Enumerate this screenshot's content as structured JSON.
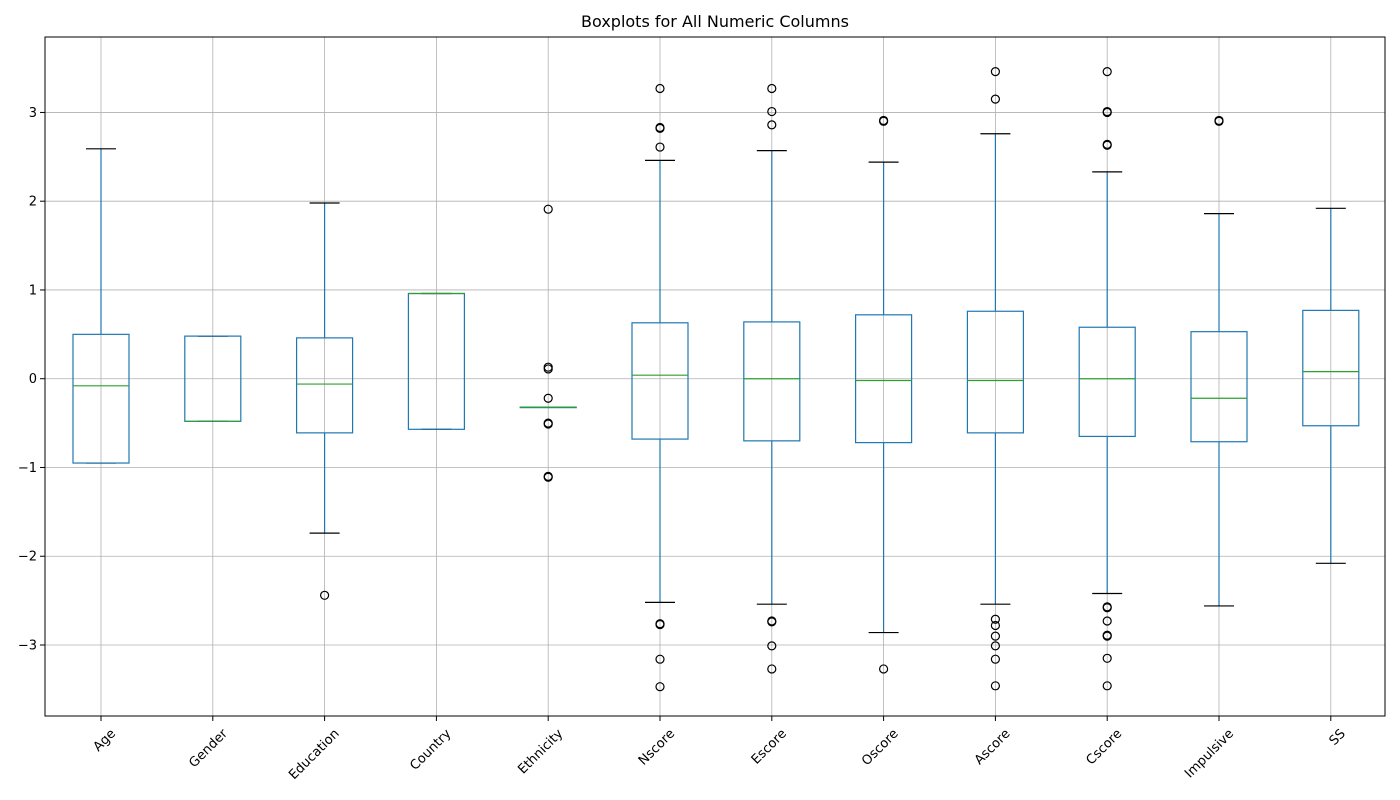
{
  "chart_data": {
    "type": "boxplot",
    "title": "Boxplots for All Numeric Columns",
    "xlabel": "",
    "ylabel": "",
    "ylim": [
      -3.8,
      3.85
    ],
    "yticks": [
      -3,
      -2,
      -1,
      0,
      1,
      2,
      3
    ],
    "grid": true,
    "colors": {
      "box": "#1f77b4",
      "median": "#2ca02c",
      "whisker_cap": "#000000",
      "grid": "#b0b0b0",
      "flier": "#000000"
    },
    "categories": [
      "Age",
      "Gender",
      "Education",
      "Country",
      "Ethnicity",
      "Nscore",
      "Escore",
      "Oscore",
      "Ascore",
      "Cscore",
      "Impulsive",
      "SS"
    ],
    "boxes": [
      {
        "name": "Age",
        "whislo": -0.95,
        "q1": -0.95,
        "med": -0.08,
        "q3": 0.5,
        "whishi": 2.59,
        "fliers": []
      },
      {
        "name": "Gender",
        "whislo": -0.48,
        "q1": -0.48,
        "med": -0.48,
        "q3": 0.48,
        "whishi": 0.48,
        "fliers": []
      },
      {
        "name": "Education",
        "whislo": -1.74,
        "q1": -0.61,
        "med": -0.06,
        "q3": 0.46,
        "whishi": 1.98,
        "fliers": [
          -2.44
        ]
      },
      {
        "name": "Country",
        "whislo": -0.57,
        "q1": -0.57,
        "med": 0.96,
        "q3": 0.96,
        "whishi": 0.96,
        "fliers": []
      },
      {
        "name": "Ethnicity",
        "whislo": -0.32,
        "q1": -0.32,
        "med": -0.32,
        "q3": -0.32,
        "whishi": -0.32,
        "fliers": [
          1.91,
          0.13,
          0.11,
          -0.22,
          -0.5,
          -0.51,
          -1.11,
          -1.1
        ]
      },
      {
        "name": "Nscore",
        "whislo": -2.52,
        "q1": -0.68,
        "med": 0.04,
        "q3": 0.63,
        "whishi": 2.46,
        "fliers": [
          3.27,
          2.83,
          2.82,
          2.61,
          -2.76,
          -2.77,
          -3.16,
          -3.47
        ]
      },
      {
        "name": "Escore",
        "whislo": -2.54,
        "q1": -0.7,
        "med": 0.0,
        "q3": 0.64,
        "whishi": 2.57,
        "fliers": [
          3.27,
          3.01,
          2.86,
          -2.73,
          -2.74,
          -3.01,
          -3.27
        ]
      },
      {
        "name": "Oscore",
        "whislo": -2.86,
        "q1": -0.72,
        "med": -0.02,
        "q3": 0.72,
        "whishi": 2.44,
        "fliers": [
          2.9,
          2.91,
          -3.27
        ]
      },
      {
        "name": "Ascore",
        "whislo": -2.54,
        "q1": -0.61,
        "med": -0.02,
        "q3": 0.76,
        "whishi": 2.76,
        "fliers": [
          3.46,
          3.15,
          -2.71,
          -2.78,
          -2.9,
          -3.01,
          -3.16,
          -3.46
        ]
      },
      {
        "name": "Cscore",
        "whislo": -2.42,
        "q1": -0.65,
        "med": 0.0,
        "q3": 0.58,
        "whishi": 2.33,
        "fliers": [
          3.46,
          3.01,
          3.0,
          2.63,
          2.64,
          -2.57,
          -2.58,
          -2.73,
          -2.9,
          -2.89,
          -3.15,
          -3.46
        ]
      },
      {
        "name": "Impulsive",
        "whislo": -2.56,
        "q1": -0.71,
        "med": -0.22,
        "q3": 0.53,
        "whishi": 1.86,
        "fliers": [
          2.9,
          2.91
        ]
      },
      {
        "name": "SS",
        "whislo": -2.08,
        "q1": -0.53,
        "med": 0.08,
        "q3": 0.77,
        "whishi": 1.92,
        "fliers": []
      }
    ]
  }
}
